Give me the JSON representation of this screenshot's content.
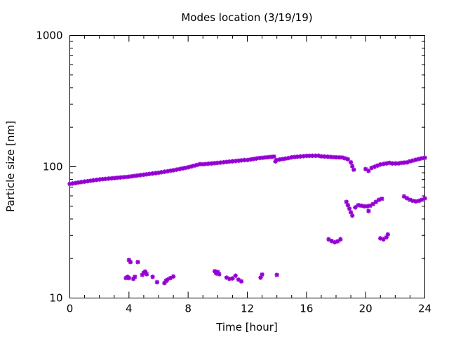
{
  "chart_data": {
    "type": "scatter",
    "title": "Modes location (3/19/19)",
    "xlabel": "Time [hour]",
    "ylabel": "Particle size [nm]",
    "xlim": [
      0,
      24
    ],
    "ylim": [
      10,
      1000
    ],
    "yscale": "log",
    "xticks": [
      0,
      4,
      8,
      12,
      16,
      20,
      24
    ],
    "yticks": [
      10,
      100,
      1000
    ],
    "grid": false,
    "legend": "none",
    "marker_color": "#9400d3",
    "series": [
      {
        "points": [
          [
            0.0,
            74
          ],
          [
            0.2,
            74.6
          ],
          [
            0.4,
            75.2
          ],
          [
            0.6,
            75.9
          ],
          [
            0.8,
            76.5
          ],
          [
            1.0,
            77.1
          ],
          [
            1.2,
            77.6
          ],
          [
            1.4,
            78.2
          ],
          [
            1.6,
            78.8
          ],
          [
            1.8,
            79.4
          ],
          [
            2.0,
            80
          ],
          [
            2.2,
            80.4
          ],
          [
            2.4,
            80.8
          ],
          [
            2.6,
            81.2
          ],
          [
            2.8,
            81.6
          ],
          [
            3.0,
            82
          ],
          [
            3.2,
            82.4
          ],
          [
            3.4,
            82.8
          ],
          [
            3.6,
            83.2
          ],
          [
            3.8,
            83.6
          ],
          [
            4.0,
            84
          ],
          [
            4.2,
            84.6
          ],
          [
            4.4,
            85.2
          ],
          [
            4.6,
            85.8
          ],
          [
            4.8,
            86.4
          ],
          [
            5.0,
            87
          ],
          [
            5.2,
            87.6
          ],
          [
            5.4,
            88.2
          ],
          [
            5.6,
            88.8
          ],
          [
            5.8,
            89.4
          ],
          [
            6.0,
            90
          ],
          [
            6.2,
            90.8
          ],
          [
            6.4,
            91.6
          ],
          [
            6.6,
            92.4
          ],
          [
            6.8,
            93.2
          ],
          [
            7.0,
            94
          ],
          [
            7.2,
            95
          ],
          [
            7.4,
            96
          ],
          [
            7.6,
            97
          ],
          [
            7.8,
            98
          ],
          [
            8.0,
            99
          ],
          [
            8.2,
            100.4
          ],
          [
            8.4,
            101.8
          ],
          [
            8.6,
            103.2
          ],
          [
            8.8,
            104.6
          ],
          [
            9.0,
            104.5
          ],
          [
            9.2,
            105
          ],
          [
            9.4,
            105.5
          ],
          [
            9.6,
            106
          ],
          [
            9.8,
            106.5
          ],
          [
            10.0,
            107
          ],
          [
            10.2,
            107.6
          ],
          [
            10.4,
            108.2
          ],
          [
            10.6,
            108.8
          ],
          [
            10.8,
            109.4
          ],
          [
            11.0,
            110
          ],
          [
            11.2,
            110.6
          ],
          [
            11.4,
            111.2
          ],
          [
            11.6,
            111.8
          ],
          [
            11.8,
            112.4
          ],
          [
            12.0,
            112.5
          ],
          [
            12.2,
            113.5
          ],
          [
            12.4,
            114.5
          ],
          [
            12.6,
            115.5
          ],
          [
            12.8,
            116.5
          ],
          [
            13.0,
            117
          ],
          [
            13.2,
            117.6
          ],
          [
            13.4,
            118.2
          ],
          [
            13.6,
            118.8
          ],
          [
            13.8,
            119.4
          ],
          [
            13.9,
            110
          ],
          [
            14.0,
            112.5
          ],
          [
            14.2,
            113.5
          ],
          [
            14.4,
            114.5
          ],
          [
            14.6,
            115.5
          ],
          [
            14.8,
            116.5
          ],
          [
            15.0,
            118
          ],
          [
            15.2,
            118.6
          ],
          [
            15.4,
            119.2
          ],
          [
            15.6,
            119.8
          ],
          [
            15.8,
            120.4
          ],
          [
            16.0,
            121
          ],
          [
            16.2,
            121.1
          ],
          [
            16.4,
            121.2
          ],
          [
            16.6,
            121.3
          ],
          [
            16.8,
            121.4
          ],
          [
            17.0,
            120
          ],
          [
            17.2,
            119.6
          ],
          [
            17.4,
            119.2
          ],
          [
            17.6,
            118.8
          ],
          [
            17.8,
            118.4
          ],
          [
            18.0,
            118
          ],
          [
            18.2,
            117.8
          ],
          [
            18.4,
            117.6
          ],
          [
            18.6,
            116
          ],
          [
            18.8,
            114
          ],
          [
            19.0,
            108
          ],
          [
            19.1,
            101
          ],
          [
            19.2,
            95
          ],
          [
            20.0,
            96
          ],
          [
            20.2,
            93
          ],
          [
            20.4,
            98
          ],
          [
            20.6,
            100
          ],
          [
            20.8,
            102
          ],
          [
            21.0,
            104
          ],
          [
            21.2,
            105
          ],
          [
            21.4,
            106
          ],
          [
            21.6,
            107
          ],
          [
            21.8,
            106
          ],
          [
            22.0,
            106
          ],
          [
            22.2,
            106
          ],
          [
            22.4,
            107
          ],
          [
            22.6,
            107.5
          ],
          [
            22.8,
            108
          ],
          [
            23.0,
            110
          ],
          [
            23.2,
            111.5
          ],
          [
            23.4,
            113
          ],
          [
            23.6,
            114.5
          ],
          [
            23.8,
            116
          ],
          [
            24.0,
            117
          ],
          [
            17.5,
            28
          ],
          [
            17.7,
            27.2
          ],
          [
            17.9,
            26.6
          ],
          [
            18.1,
            27
          ],
          [
            18.3,
            28
          ],
          [
            18.7,
            54
          ],
          [
            18.8,
            51
          ],
          [
            18.9,
            48
          ],
          [
            19.0,
            45
          ],
          [
            19.1,
            42.5
          ],
          [
            19.3,
            49
          ],
          [
            19.5,
            51
          ],
          [
            19.7,
            50.5
          ],
          [
            19.9,
            50
          ],
          [
            20.1,
            50
          ],
          [
            20.3,
            50.5
          ],
          [
            20.5,
            52
          ],
          [
            20.7,
            54
          ],
          [
            20.9,
            56
          ],
          [
            21.1,
            57
          ],
          [
            20.2,
            46
          ],
          [
            21.0,
            28.5
          ],
          [
            21.2,
            28
          ],
          [
            21.4,
            29
          ],
          [
            21.5,
            30.5
          ],
          [
            22.6,
            59.5
          ],
          [
            22.8,
            57.5
          ],
          [
            23.0,
            56
          ],
          [
            23.2,
            55
          ],
          [
            23.4,
            54.5
          ],
          [
            23.6,
            55
          ],
          [
            23.8,
            56
          ],
          [
            24.0,
            57.5
          ],
          [
            3.8,
            14.2
          ],
          [
            3.9,
            14.5
          ],
          [
            4.0,
            14.2
          ],
          [
            4.0,
            19.5
          ],
          [
            4.1,
            18.8
          ],
          [
            4.3,
            14.0
          ],
          [
            4.4,
            14.5
          ],
          [
            4.6,
            18.8
          ],
          [
            4.9,
            15.0
          ],
          [
            5.0,
            15.6
          ],
          [
            5.1,
            15.9
          ],
          [
            5.2,
            15.2
          ],
          [
            5.6,
            14.5
          ],
          [
            5.9,
            13.2
          ],
          [
            6.4,
            13
          ],
          [
            6.5,
            13.5
          ],
          [
            6.6,
            13.8
          ],
          [
            6.8,
            14.2
          ],
          [
            7.0,
            14.6
          ],
          [
            9.8,
            16.0
          ],
          [
            9.9,
            15.4
          ],
          [
            10.0,
            15.8
          ],
          [
            10.1,
            15.2
          ],
          [
            10.6,
            14.3
          ],
          [
            10.8,
            14.0
          ],
          [
            11.0,
            14.1
          ],
          [
            11.2,
            14.8
          ],
          [
            11.4,
            13.8
          ],
          [
            11.6,
            13.4
          ],
          [
            12.9,
            14.3
          ],
          [
            13.0,
            15.1
          ],
          [
            14.0,
            15
          ]
        ]
      }
    ]
  }
}
